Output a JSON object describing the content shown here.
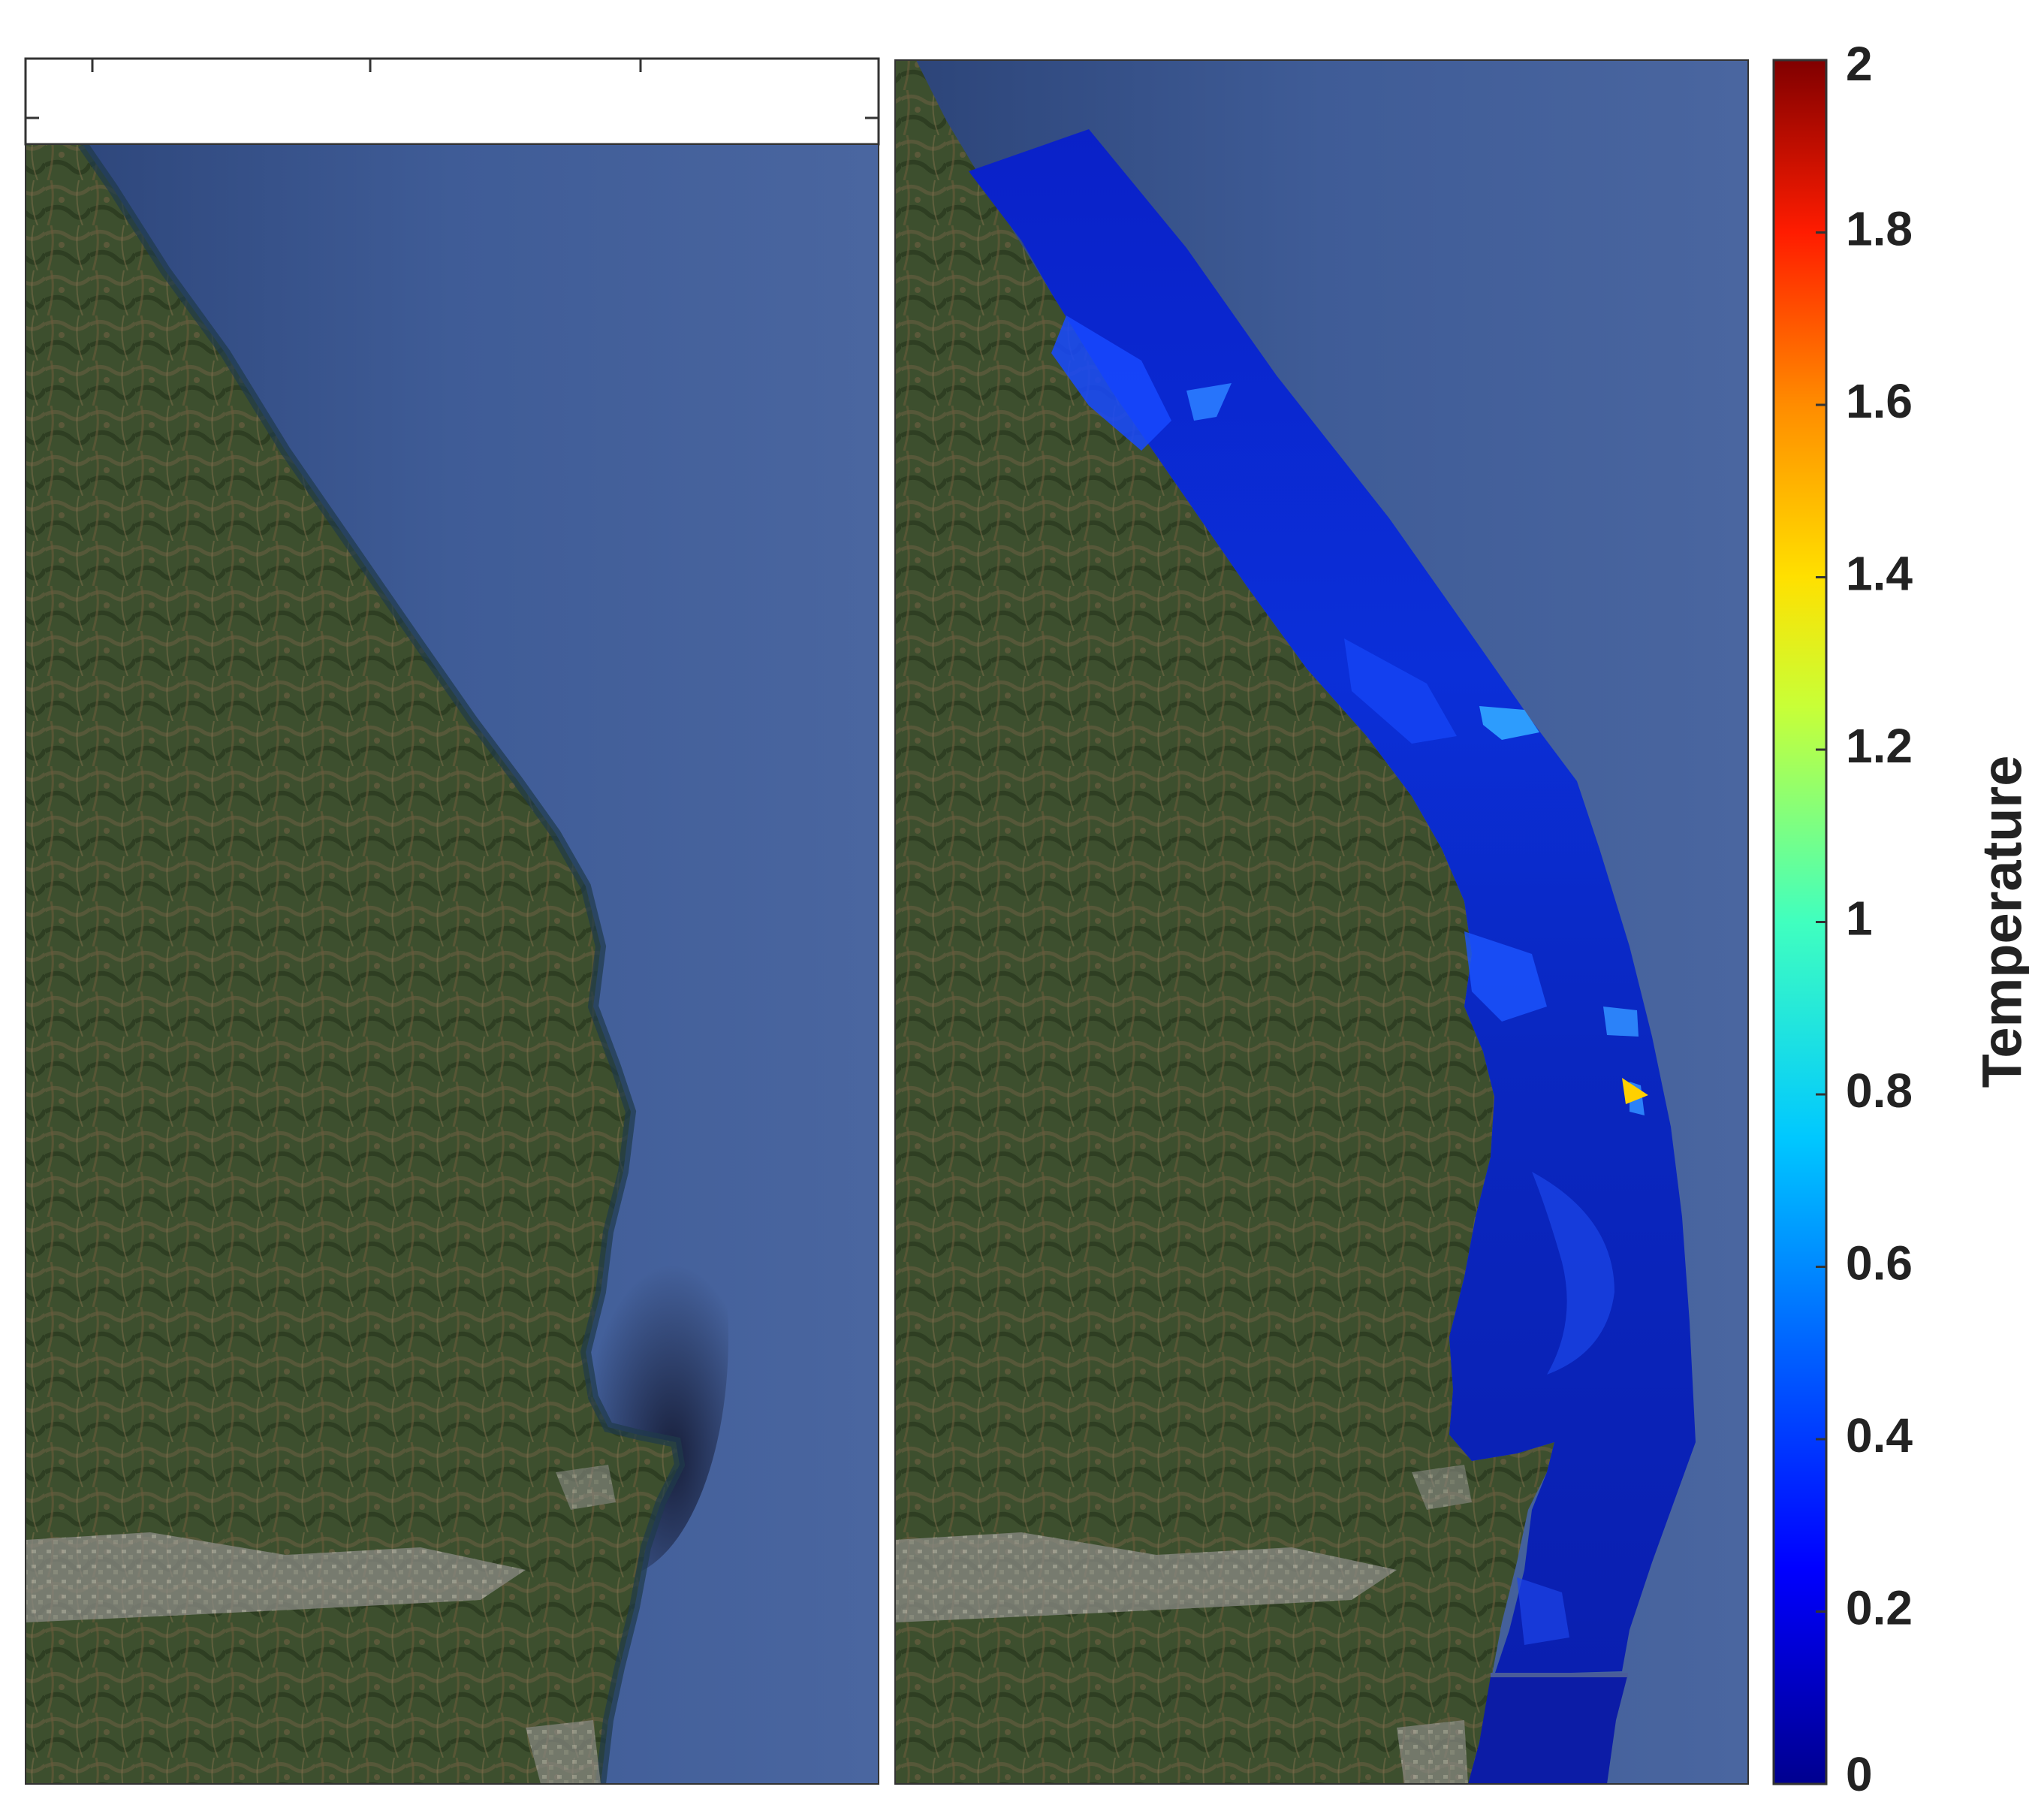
{
  "colorbar": {
    "title": "Temperature",
    "min": 0,
    "max": 2,
    "ticks": [
      "0",
      "0.2",
      "0.4",
      "0.6",
      "0.8",
      "1",
      "1.2",
      "1.4",
      "1.6",
      "1.8",
      "2"
    ],
    "colormap": "jet",
    "colors": [
      "#00008f",
      "#0000ff",
      "#0080ff",
      "#00ffff",
      "#80ff80",
      "#ffff00",
      "#ff8000",
      "#ff0000",
      "#800000"
    ]
  },
  "panels": [
    {
      "content": "satellite-coastline"
    },
    {
      "content": "satellite-coastline-with-temperature-overlay"
    }
  ],
  "map_colors": {
    "land": "#3d4f2e",
    "sea": "#3f5c97",
    "overlay_base": "#0a22b4"
  }
}
